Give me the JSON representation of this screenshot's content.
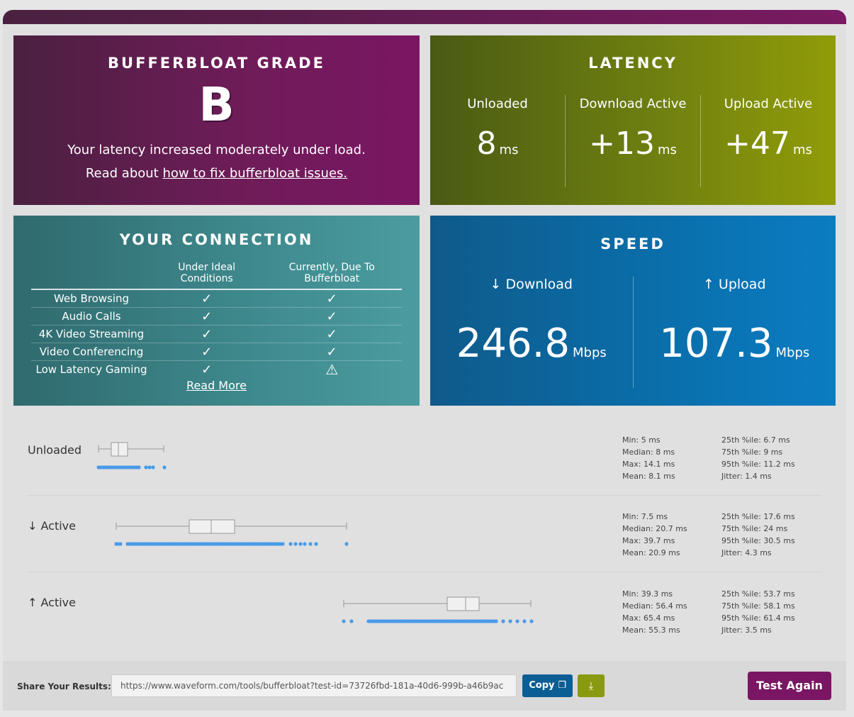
{
  "grade": {
    "title": "Bufferbloat Grade",
    "letter": "B",
    "line1": "Your latency increased moderately under load.",
    "line2_prefix": "Read about ",
    "line2_link": "how to fix bufferbloat issues."
  },
  "latency": {
    "title": "Latency",
    "cols": [
      {
        "label": "Unloaded",
        "value": "8",
        "unit": "ms"
      },
      {
        "label": "Download Active",
        "value": "+13",
        "unit": "ms"
      },
      {
        "label": "Upload Active",
        "value": "+47",
        "unit": "ms"
      }
    ]
  },
  "connection": {
    "title": "Your Connection",
    "col_ideal": "Under Ideal Conditions",
    "col_current": "Currently, Due To Bufferbloat",
    "rows": [
      {
        "label": "Web Browsing",
        "ideal": "✓",
        "current": "✓"
      },
      {
        "label": "Audio Calls",
        "ideal": "✓",
        "current": "✓"
      },
      {
        "label": "4K Video Streaming",
        "ideal": "✓",
        "current": "✓"
      },
      {
        "label": "Video Conferencing",
        "ideal": "✓",
        "current": "✓"
      },
      {
        "label": "Low Latency Gaming",
        "ideal": "✓",
        "current": "⚠"
      }
    ],
    "read_more": "Read More"
  },
  "speed": {
    "title": "Speed",
    "download_label": "↓ Download",
    "download_value": "246.8",
    "upload_label": "↑ Upload",
    "upload_value": "107.3",
    "unit": "Mbps"
  },
  "latency_rows": [
    {
      "label": "Unloaded",
      "stats_left": [
        "Min: 5 ms",
        "Median: 8 ms",
        "Max: 14.1 ms",
        "Mean: 8.1 ms"
      ],
      "stats_right": [
        "25th %ile: 6.7 ms",
        "75th %ile: 9 ms",
        "95th %ile: 11.2 ms",
        "Jitter: 1.4 ms"
      ]
    },
    {
      "label": "↓ Active",
      "stats_left": [
        "Min: 7.5 ms",
        "Median: 20.7 ms",
        "Max: 39.7 ms",
        "Mean: 20.9 ms"
      ],
      "stats_right": [
        "25th %ile: 17.6 ms",
        "75th %ile: 24 ms",
        "95th %ile: 30.5 ms",
        "Jitter: 4.3 ms"
      ]
    },
    {
      "label": "↑ Active",
      "stats_left": [
        "Min: 39.3 ms",
        "Median: 56.4 ms",
        "Max: 65.4 ms",
        "Mean: 55.3 ms"
      ],
      "stats_right": [
        "25th %ile: 53.7 ms",
        "75th %ile: 58.1 ms",
        "95th %ile: 61.4 ms",
        "Jitter: 3.5 ms"
      ]
    }
  ],
  "share": {
    "label": "Share Your Results:",
    "url": "https://www.waveform.com/tools/bufferbloat?test-id=73726fbd-181a-40d6-999b-a46b9ac",
    "copy_label": "Copy",
    "download_icon": "download-icon",
    "test_again_label": "Test Again"
  },
  "colors": {
    "grade": "#6e1c58",
    "latency": "#6e7f10",
    "connection": "#3f8a8e",
    "speed": "#0a6eaa",
    "dots": "#4a9be8"
  }
}
